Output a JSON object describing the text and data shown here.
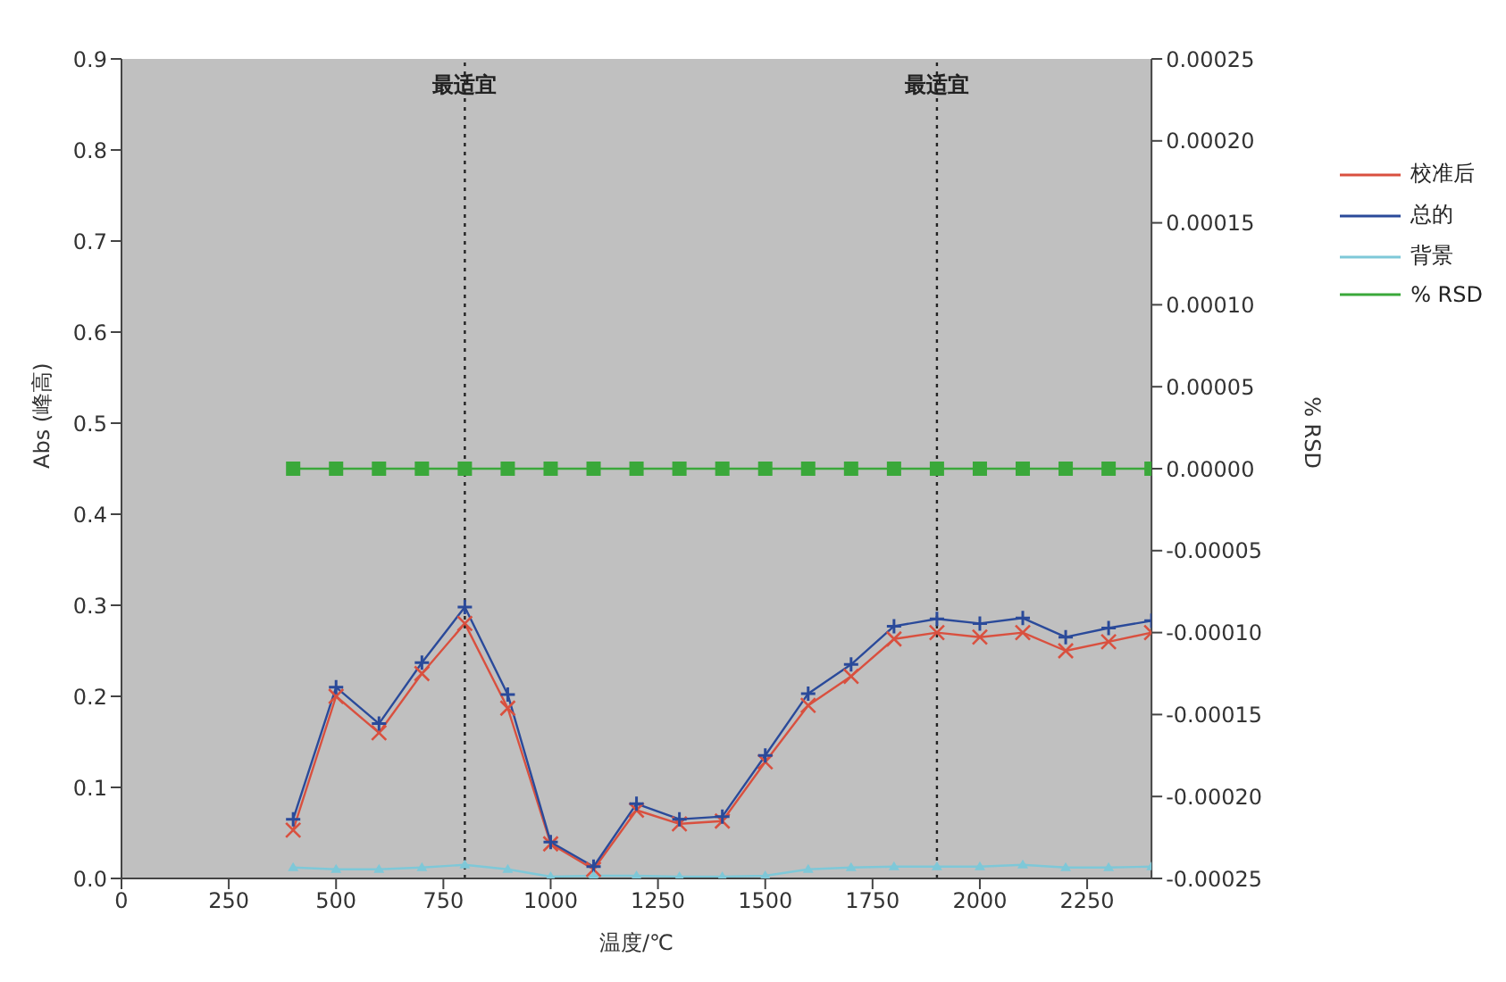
{
  "chart_data": {
    "type": "line",
    "xlabel": "温度/℃",
    "ylabel": "Abs (峰高)",
    "y2label": "% RSD",
    "x": [
      400,
      500,
      600,
      700,
      800,
      900,
      1000,
      1100,
      1200,
      1300,
      1400,
      1500,
      1600,
      1700,
      1800,
      1900,
      2000,
      2100,
      2200,
      2300,
      2400
    ],
    "series": [
      {
        "name": "校准后",
        "color": "#d9503f",
        "marker": "cross",
        "values": [
          0.053,
          0.2,
          0.16,
          0.225,
          0.28,
          0.187,
          0.038,
          0.01,
          0.075,
          0.06,
          0.063,
          0.128,
          0.19,
          0.222,
          0.263,
          0.27,
          0.265,
          0.27,
          0.25,
          0.26,
          0.27
        ]
      },
      {
        "name": "总的",
        "color": "#2a4a9a",
        "marker": "plus",
        "values": [
          0.065,
          0.21,
          0.17,
          0.237,
          0.298,
          0.202,
          0.04,
          0.013,
          0.082,
          0.065,
          0.068,
          0.135,
          0.203,
          0.235,
          0.277,
          0.285,
          0.28,
          0.286,
          0.265,
          0.275,
          0.283
        ]
      },
      {
        "name": "背景",
        "color": "#7ec8d8",
        "marker": "triangle",
        "values": [
          0.012,
          0.01,
          0.01,
          0.012,
          0.015,
          0.01,
          0.002,
          0.003,
          0.003,
          0.002,
          0.002,
          0.003,
          0.01,
          0.012,
          0.013,
          0.013,
          0.013,
          0.015,
          0.012,
          0.012,
          0.013
        ]
      },
      {
        "name": "% RSD",
        "color": "#3aa83a",
        "marker": "square",
        "axis": "y2",
        "values": [
          0,
          0,
          0,
          0,
          0,
          0,
          0,
          0,
          0,
          0,
          0,
          0,
          0,
          0,
          0,
          0,
          0,
          0,
          0,
          0,
          0
        ]
      }
    ],
    "xlim": [
      0,
      2400
    ],
    "xticks": [
      0,
      250,
      500,
      750,
      1000,
      1250,
      1500,
      1750,
      2000,
      2250
    ],
    "ylim": [
      0,
      0.9
    ],
    "yticks": [
      {
        "value": 0,
        "label": "0.0"
      },
      {
        "value": 0.1,
        "label": "0.1"
      },
      {
        "value": 0.2,
        "label": "0.2"
      },
      {
        "value": 0.3,
        "label": "0.3"
      },
      {
        "value": 0.4,
        "label": "0.4"
      },
      {
        "value": 0.5,
        "label": "0.5"
      },
      {
        "value": 0.6,
        "label": "0.6"
      },
      {
        "value": 0.7,
        "label": "0.7"
      },
      {
        "value": 0.8,
        "label": "0.8"
      },
      {
        "value": 0.9,
        "label": "0.9"
      }
    ],
    "y2lim": [
      -0.00025,
      0.00025
    ],
    "y2ticks": [
      {
        "value": -0.00025,
        "label": "-0.00025"
      },
      {
        "value": -0.0002,
        "label": "-0.00020"
      },
      {
        "value": -0.00015,
        "label": "-0.00015"
      },
      {
        "value": -0.0001,
        "label": "-0.00010"
      },
      {
        "value": -5e-05,
        "label": "-0.00005"
      },
      {
        "value": 0,
        "label": "0.00000"
      },
      {
        "value": 5e-05,
        "label": "0.00005"
      },
      {
        "value": 0.0001,
        "label": "0.00010"
      },
      {
        "value": 0.00015,
        "label": "0.00015"
      },
      {
        "value": 0.0002,
        "label": "0.00020"
      },
      {
        "value": 0.00025,
        "label": "0.00025"
      }
    ],
    "ref_lines": [
      {
        "axis": "x",
        "value": 800,
        "label": "最适宜",
        "line_style": "dotted",
        "color": "#222222"
      },
      {
        "axis": "x",
        "value": 1900,
        "label": "最适宜",
        "line_style": "dotted",
        "color": "#222222"
      }
    ],
    "legend": "right",
    "grid": false
  }
}
